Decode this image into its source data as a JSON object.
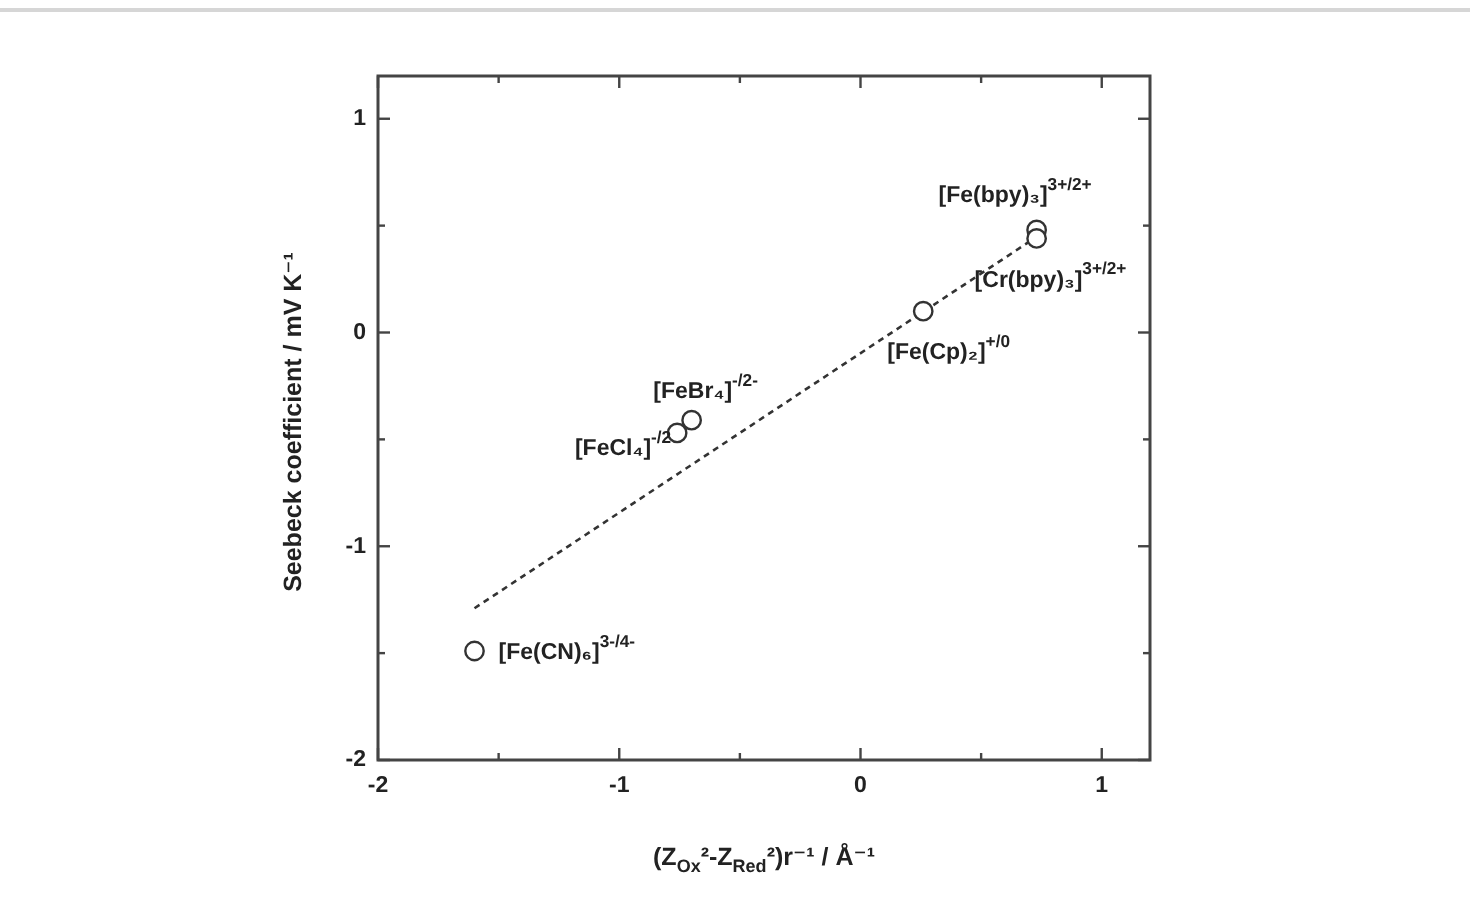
{
  "chart_data": {
    "type": "scatter",
    "xlabel": "(Z$_{Ox}$²-Z$_{Red}$²)r⁻¹ / Å⁻¹",
    "ylabel": "Seebeck coefficient / mV K⁻¹",
    "xlim": [
      -2,
      1.2
    ],
    "ylim": [
      -2,
      1.2
    ],
    "xticks": [
      -2,
      {
        "value": -1.5,
        "label": null
      },
      -1,
      {
        "value": -0.5,
        "label": null
      },
      0,
      {
        "value": 0.5,
        "label": null
      },
      1
    ],
    "yticks": [
      -2,
      {
        "value": -1.5,
        "label": null
      },
      -1,
      {
        "value": -0.5,
        "label": null
      },
      0,
      {
        "value": 0.5,
        "label": null
      },
      1
    ],
    "series": [
      {
        "type": "scatter",
        "color": "#333333",
        "marker": "circle",
        "x": [
          -1.6,
          -0.76,
          -0.7,
          0.26,
          0.73,
          0.73
        ],
        "values": [
          -1.49,
          -0.47,
          -0.41,
          0.1,
          0.48,
          0.44
        ]
      },
      {
        "type": "line",
        "color": "#333333",
        "marker": "none",
        "line_style": "dashed",
        "x": [
          -1.6,
          0.72
        ],
        "values": [
          -1.29,
          0.44
        ]
      }
    ],
    "annotations": [
      {
        "text": "[Fe(CN)₆]$^{3-/4-}$",
        "x": -1.6,
        "y": -1.49
      },
      {
        "text": "[FeCl₄]$^{-/2}$",
        "x": -0.76,
        "y": -0.47
      },
      {
        "text": "[FeBr₄]$^{-/2-}$",
        "x": -0.7,
        "y": -0.41
      },
      {
        "text": "[Fe(Cp)₂]$^{+/0}$",
        "x": 0.26,
        "y": 0.1
      },
      {
        "text": "[Fe(bpy)₃]$^{3+/2+}$",
        "x": 0.73,
        "y": 0.48
      },
      {
        "text": "[Cr(bpy)₃]$^{3+/2+}$",
        "x": 0.73,
        "y": 0.44
      }
    ]
  }
}
